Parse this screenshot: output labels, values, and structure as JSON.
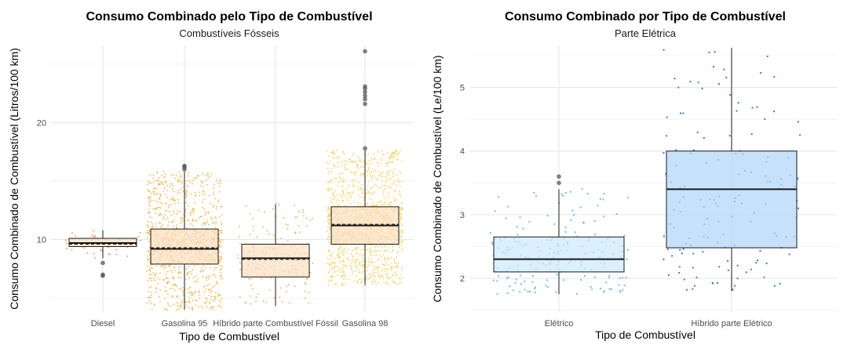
{
  "chart_data": [
    {
      "type": "boxplot",
      "title": "Consumo Combinado pelo Tipo de Combustível",
      "subtitle": "Combustíveis Fósseis",
      "xlabel": "Tipo de Combustível",
      "ylabel": "Consumo Combinado de Combustível (Litros/100 km)",
      "ylim": [
        3.8,
        26.6
      ],
      "yticks": [
        10,
        20
      ],
      "grid": true,
      "jitter_points": true,
      "categories": [
        "Diesel",
        "Gasolina 95",
        "Híbrido parte Combustível Fóssil",
        "Gasolina 98"
      ],
      "boxes": [
        {
          "name": "Diesel",
          "q1": 9.4,
          "median": 9.7,
          "mean": 9.6,
          "q3": 10.1,
          "whisker_low": 8.4,
          "whisker_high": 10.8,
          "outliers": [
            8.0,
            7.0,
            6.9
          ],
          "n_points": 45,
          "fill": "#fbe1c6",
          "point_color": "#e8813a"
        },
        {
          "name": "Gasolina 95",
          "q1": 7.9,
          "median": 9.2,
          "mean": 9.3,
          "q3": 10.9,
          "whisker_low": 4.0,
          "whisker_high": 15.8,
          "outliers": [
            16.0,
            16.2,
            16.3
          ],
          "n_points": 1100,
          "fill": "#fbe1c6",
          "point_color": "#f0b43c"
        },
        {
          "name": "Híbrido parte Combustível Fóssil",
          "q1": 6.8,
          "median": 8.4,
          "mean": 8.3,
          "q3": 9.6,
          "whisker_low": 4.3,
          "whisker_high": 13.0,
          "outliers": [],
          "n_points": 170,
          "fill": "#fbe1c6",
          "point_color": "#eda63a"
        },
        {
          "name": "Gasolina 98",
          "q1": 9.6,
          "median": 11.2,
          "mean": 11.3,
          "q3": 12.8,
          "whisker_low": 6.1,
          "whisker_high": 17.6,
          "outliers": [
            17.8,
            21.6,
            22.0,
            22.3,
            22.6,
            22.9,
            23.1,
            26.1
          ],
          "n_points": 1500,
          "fill": "#fbe1c6",
          "point_color": "#f4d157"
        }
      ]
    },
    {
      "type": "boxplot",
      "title": "Consumo Combinado por Tipo de Combustível",
      "subtitle": "Parte Elétrica",
      "xlabel": "Tipo de Combustível",
      "ylabel": "Consumo Combinado de Combustível (Le/100 km)",
      "ylim": [
        1.47,
        5.66
      ],
      "yticks": [
        2,
        3,
        4,
        5
      ],
      "grid": true,
      "jitter_points": true,
      "categories": [
        "Elétrico",
        "Híbrido parte Elétrico"
      ],
      "boxes": [
        {
          "name": "Elétrico",
          "q1": 2.1,
          "median": 2.3,
          "q3": 2.65,
          "whisker_low": 1.75,
          "whisker_high": 3.4,
          "outliers": [
            3.5,
            3.6
          ],
          "n_points": 200,
          "fill": "#cfeafb",
          "point_color": "#62b8e8"
        },
        {
          "name": "Híbrido parte Elétrico",
          "q1": 2.48,
          "median": 3.4,
          "q3": 4.0,
          "whisker_low": 1.8,
          "whisker_high": 5.62,
          "outliers": [],
          "n_points": 140,
          "fill": "#b5d7f8",
          "point_color": "#1f6fd6"
        }
      ]
    }
  ]
}
